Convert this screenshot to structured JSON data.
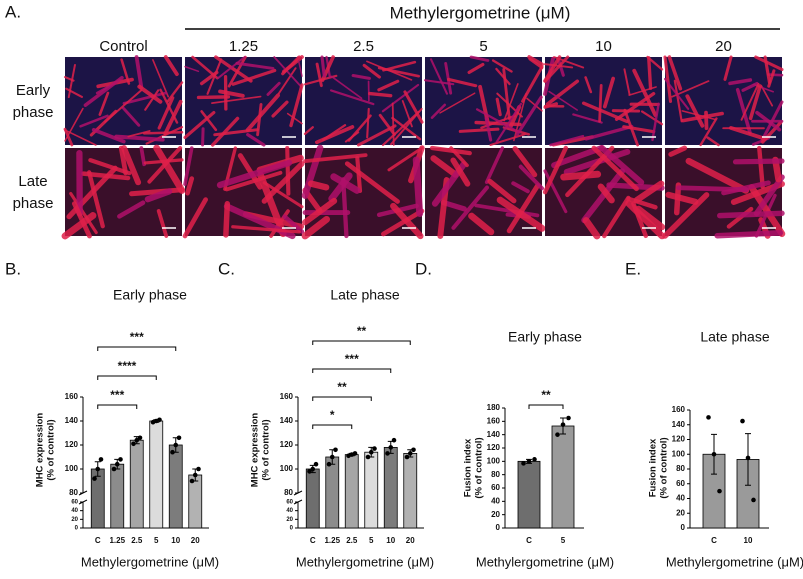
{
  "figure_a": {
    "label": "A.",
    "header": "Methylergometrine (μM)",
    "columns": [
      "Control",
      "1.25",
      "2.5",
      "5",
      "10",
      "20"
    ],
    "rows": [
      [
        "Early",
        "phase"
      ],
      [
        "Late",
        "phase"
      ]
    ]
  },
  "chart_data": [
    {
      "type": "bar",
      "panel_label": "B.",
      "title": "Early phase",
      "ylabel": [
        "MHC expression",
        "(% of control)"
      ],
      "xlabel": "Methylergometrine (μM)",
      "categories": [
        "C",
        "1.25",
        "2.5",
        "5",
        "10",
        "20"
      ],
      "values": [
        100,
        104,
        124,
        140,
        120,
        95
      ],
      "errors": [
        6,
        4,
        3,
        1,
        6,
        5
      ],
      "points": [
        [
          92,
          100,
          108
        ],
        [
          100,
          104,
          108
        ],
        [
          121,
          124,
          126
        ],
        [
          139,
          140,
          141
        ],
        [
          114,
          120,
          126
        ],
        [
          90,
          95,
          100
        ]
      ],
      "colors": [
        "#6e6e6e",
        "#8c8c8c",
        "#a6a6a6",
        "#dcdcdc",
        "#7c7c7c",
        "#b2b2b2"
      ],
      "ylim": [
        0,
        160
      ],
      "axis_break": [
        60,
        80
      ],
      "yticks": [
        0,
        20,
        40,
        60,
        80,
        100,
        120,
        140,
        160
      ],
      "brackets": [
        {
          "from": 0,
          "to": 2,
          "label": "***"
        },
        {
          "from": 0,
          "to": 3,
          "label": "****"
        },
        {
          "from": 0,
          "to": 4,
          "label": "***"
        }
      ]
    },
    {
      "type": "bar",
      "panel_label": "C.",
      "title": "Late phase",
      "ylabel": [
        "MHC expression",
        "(% of control)"
      ],
      "xlabel": "Methylergometrine (μM)",
      "categories": [
        "C",
        "1.25",
        "2.5",
        "5",
        "10",
        "20"
      ],
      "values": [
        100,
        110,
        112,
        114,
        118,
        113
      ],
      "errors": [
        3,
        6,
        1,
        4,
        5,
        3
      ],
      "points": [
        [
          98,
          100,
          104
        ],
        [
          104,
          110,
          116
        ],
        [
          111,
          112,
          113
        ],
        [
          110,
          114,
          117
        ],
        [
          113,
          118,
          124
        ],
        [
          110,
          113,
          116
        ]
      ],
      "colors": [
        "#6e6e6e",
        "#8c8c8c",
        "#a6a6a6",
        "#dcdcdc",
        "#7c7c7c",
        "#b2b2b2"
      ],
      "ylim": [
        0,
        160
      ],
      "axis_break": [
        60,
        80
      ],
      "yticks": [
        0,
        20,
        40,
        60,
        80,
        100,
        120,
        140,
        160
      ],
      "brackets": [
        {
          "from": 0,
          "to": 2,
          "label": "*"
        },
        {
          "from": 0,
          "to": 3,
          "label": "**"
        },
        {
          "from": 0,
          "to": 4,
          "label": "***"
        },
        {
          "from": 0,
          "to": 5,
          "label": "**"
        }
      ]
    },
    {
      "type": "bar",
      "panel_label": "D.",
      "title": "Early phase",
      "ylabel": [
        "Fusion index",
        "(% of control)"
      ],
      "xlabel": "Methylergometrine (μM)",
      "categories": [
        "C",
        "5"
      ],
      "values": [
        100,
        153
      ],
      "errors": [
        3,
        12
      ],
      "points": [
        [
          97,
          100,
          103
        ],
        [
          140,
          155,
          165
        ]
      ],
      "colors": [
        "#6e6e6e",
        "#9a9a9a"
      ],
      "ylim": [
        0,
        180
      ],
      "yticks": [
        0,
        20,
        40,
        60,
        80,
        100,
        120,
        140,
        160,
        180
      ],
      "brackets": [
        {
          "from": 0,
          "to": 1,
          "label": "**"
        }
      ]
    },
    {
      "type": "bar",
      "panel_label": "E.",
      "title": "Late phase",
      "ylabel": [
        "Fusion index",
        "(% of control)"
      ],
      "xlabel": "Methylergometrine (μM)",
      "categories": [
        "C",
        "10"
      ],
      "values": [
        100,
        93
      ],
      "errors": [
        27,
        35
      ],
      "points": [
        [
          150,
          100,
          50
        ],
        [
          145,
          95,
          38
        ]
      ],
      "colors": [
        "#9a9a9a",
        "#9a9a9a"
      ],
      "ylim": [
        0,
        160
      ],
      "yticks": [
        0,
        20,
        40,
        60,
        80,
        100,
        120,
        140,
        160
      ],
      "brackets": []
    }
  ]
}
